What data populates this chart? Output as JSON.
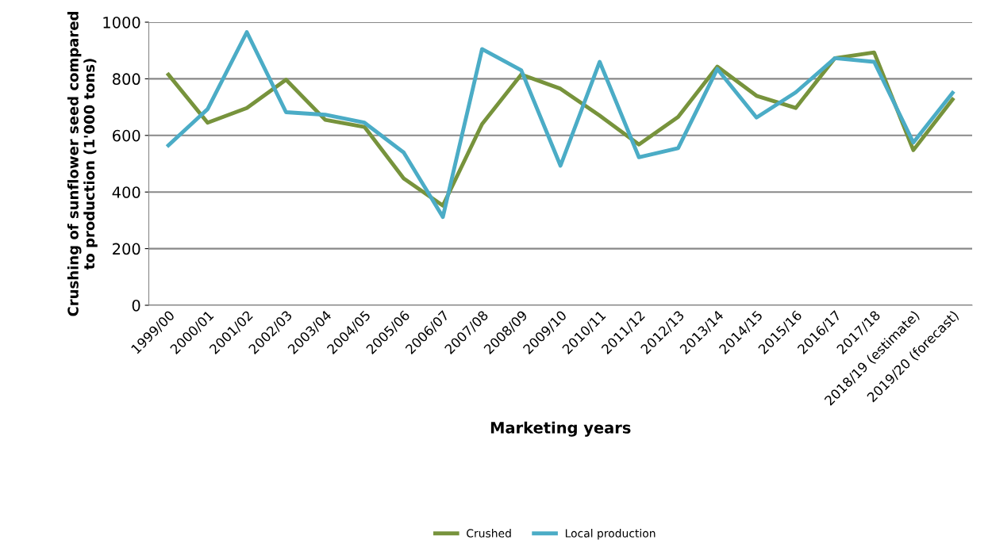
{
  "chart_data": {
    "type": "line",
    "xlabel": "Marketing years",
    "ylabel": "Crushing of sunflower seed compared to production (1'000 tons)",
    "categories": [
      "1999/00",
      "2000/01",
      "2001/02",
      "2002/03",
      "2003/04",
      "2004/05",
      "2005/06",
      "2006/07",
      "2007/08",
      "2008/09",
      "2009/10",
      "2010/11",
      "2011/12",
      "2012/13",
      "2013/14",
      "2014/15",
      "2015/16",
      "2016/17",
      "2017/18",
      "2018/19 (estimate)",
      "2019/20 (forecast)"
    ],
    "series": [
      {
        "name": "Crushed",
        "color": "#77933c",
        "values": [
          815,
          645,
          697,
          797,
          655,
          630,
          448,
          352,
          640,
          815,
          765,
          670,
          568,
          665,
          843,
          740,
          697,
          873,
          893,
          548,
          727
        ]
      },
      {
        "name": "Local production",
        "color": "#4bacc6",
        "values": [
          565,
          693,
          965,
          682,
          673,
          645,
          540,
          312,
          905,
          830,
          493,
          860,
          523,
          555,
          835,
          663,
          752,
          873,
          860,
          575,
          750
        ]
      }
    ],
    "ylim": [
      0,
      1000
    ],
    "yticks": [
      0,
      200,
      400,
      600,
      800,
      1000
    ],
    "grid": "y",
    "legend": "bottom",
    "marker": "none",
    "line_style": "solid"
  }
}
